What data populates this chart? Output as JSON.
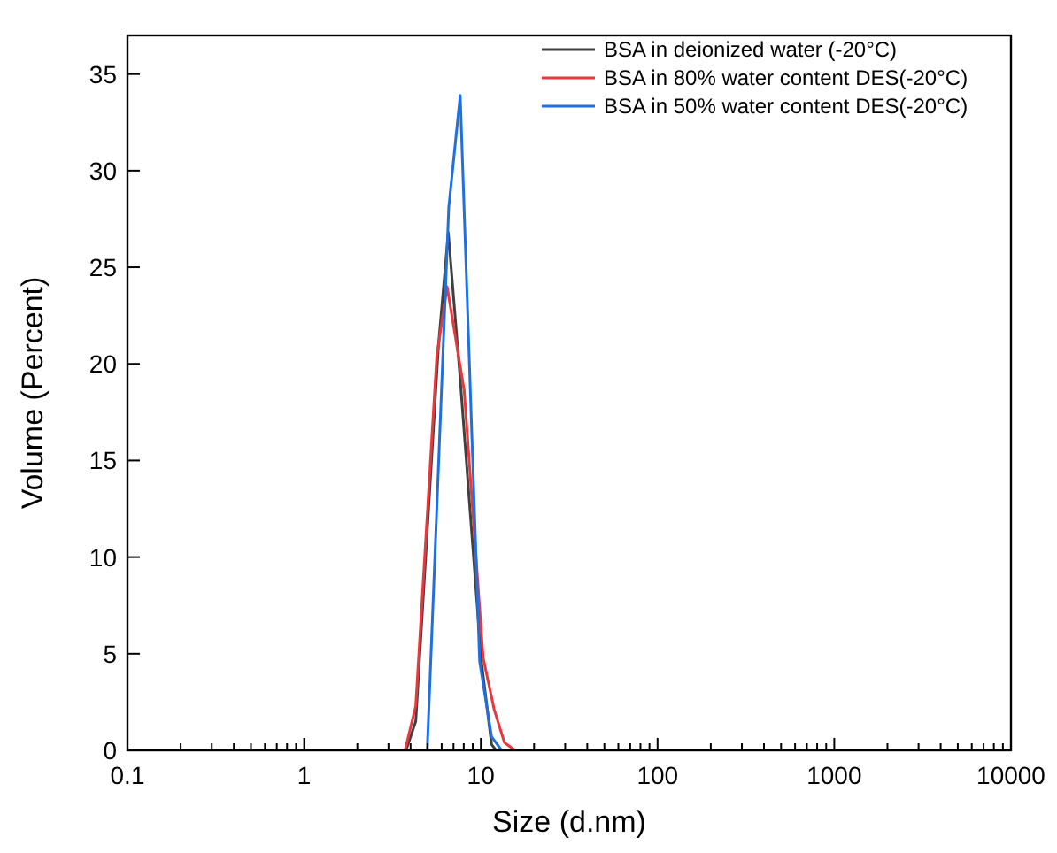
{
  "chart_data": {
    "type": "line",
    "xlabel": "Size (d.nm)",
    "ylabel": "Volume (Percent)",
    "log": "x",
    "xlim": [
      0.1,
      10000
    ],
    "xticks": [
      0.1,
      1,
      10,
      100,
      1000,
      10000
    ],
    "ylim": [
      0,
      37
    ],
    "yticks": [
      0,
      5,
      10,
      15,
      20,
      25,
      30,
      35
    ],
    "grid": false,
    "legend": "top right",
    "marker": "none",
    "line_style": "solid",
    "series": [
      {
        "name": "BSA in deionized water (-20°C)",
        "color": "#404040",
        "x": [
          3.77,
          4.28,
          5.76,
          6.54,
          7.64,
          10.07,
          11.5,
          12.2
        ],
        "values": [
          0,
          1.5,
          21,
          26.8,
          19.2,
          4.6,
          0.3,
          0
        ]
      },
      {
        "name": "BSA in 80% water content DES(-20°C)",
        "color": "#e8383d",
        "x": [
          3.72,
          4.28,
          5.63,
          6.44,
          8.05,
          10.3,
          11.9,
          13.6,
          15.6
        ],
        "values": [
          0,
          2.3,
          20.4,
          24,
          18.6,
          4.8,
          2.1,
          0.4,
          0
        ]
      },
      {
        "name": "BSA in 50% water content DES(-20°C)",
        "color": "#1f6fe0",
        "x": [
          4.97,
          6.58,
          7.64,
          9.84,
          11.5,
          13.1
        ],
        "values": [
          0,
          28.1,
          33.9,
          4.6,
          0.7,
          0
        ]
      }
    ]
  }
}
